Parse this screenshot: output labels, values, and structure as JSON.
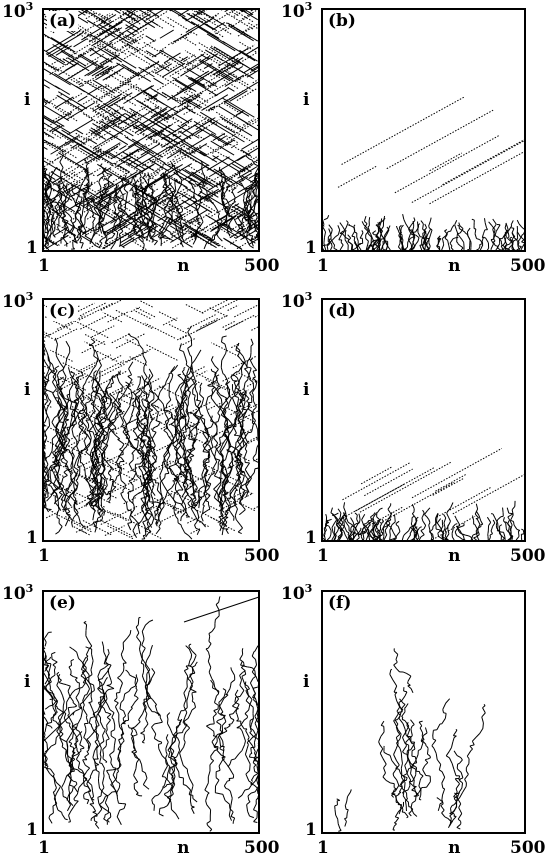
{
  "chart_data": [
    {
      "type": "scatter",
      "panel": "(a)",
      "xlabel": "n",
      "ylabel": "i",
      "xlim": [
        1,
        500
      ],
      "ylim": [
        1,
        1000
      ],
      "xticks": [
        "1",
        "500"
      ],
      "yticks": [
        "1",
        "10^3"
      ],
      "pattern": "dense",
      "density": 0.55,
      "seed": 11
    },
    {
      "type": "scatter",
      "panel": "(b)",
      "xlabel": "n",
      "ylabel": "i",
      "xlim": [
        1,
        500
      ],
      "ylim": [
        1,
        1000
      ],
      "xticks": [
        "1",
        "500"
      ],
      "yticks": [
        "1",
        "10^3"
      ],
      "pattern": "sparse",
      "density": 0.06,
      "seed": 23
    },
    {
      "type": "scatter",
      "panel": "(c)",
      "xlabel": "n",
      "ylabel": "i",
      "xlim": [
        1,
        500
      ],
      "ylim": [
        1,
        1000
      ],
      "xticks": [
        "1",
        "500"
      ],
      "yticks": [
        "1",
        "10^3"
      ],
      "pattern": "columns",
      "density": 0.4,
      "seed": 37
    },
    {
      "type": "scatter",
      "panel": "(d)",
      "xlabel": "n",
      "ylabel": "i",
      "xlim": [
        1,
        500
      ],
      "ylim": [
        1,
        1000
      ],
      "xticks": [
        "1",
        "500"
      ],
      "yticks": [
        "1",
        "10^3"
      ],
      "pattern": "sparse",
      "density": 0.12,
      "seed": 41
    },
    {
      "type": "scatter",
      "panel": "(e)",
      "xlabel": "n",
      "ylabel": "i",
      "xlim": [
        1,
        500
      ],
      "ylim": [
        1,
        1000
      ],
      "xticks": [
        "1",
        "500"
      ],
      "yticks": [
        "1",
        "10^3"
      ],
      "pattern": "branches",
      "density": 0.3,
      "seed": 53
    },
    {
      "type": "scatter",
      "panel": "(f)",
      "xlabel": "n",
      "ylabel": "i",
      "xlim": [
        1,
        500
      ],
      "ylim": [
        1,
        1000
      ],
      "xticks": [
        "1",
        "500"
      ],
      "yticks": [
        "1",
        "10^3"
      ],
      "pattern": "cluster",
      "density": 0.15,
      "seed": 67
    }
  ],
  "colors": {
    "ink": "#000000",
    "background": "#ffffff"
  }
}
